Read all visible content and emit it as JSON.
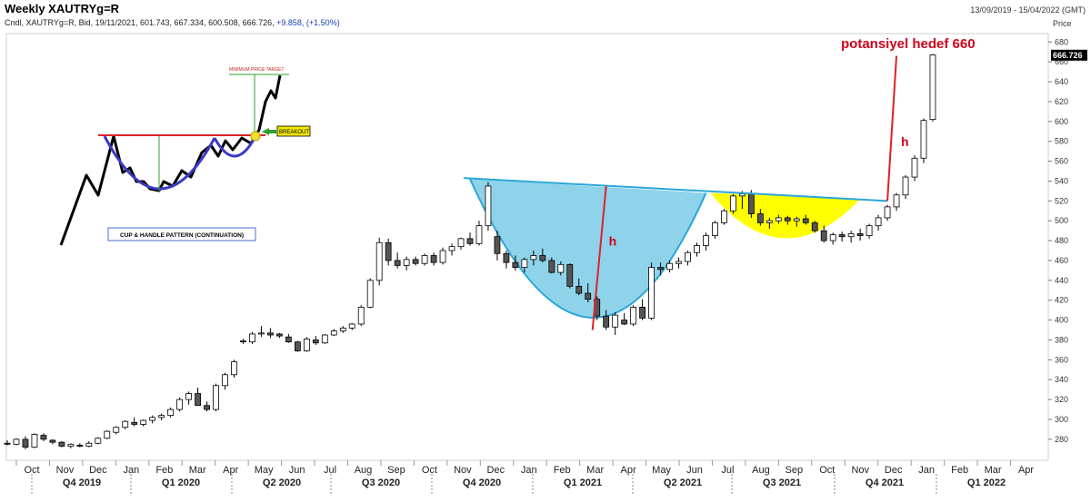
{
  "header": {
    "title": "Weekly XAUTRYg=R",
    "date_range": "13/09/2019 - 15/04/2022 (GMT)",
    "info_prefix": "Cndl, XAUTRYg=R, Bid, 19/11/2021, 601.743, 667.334, 600.508, 666.726, ",
    "info_change": "+9.858, (+1.50%)"
  },
  "axis": {
    "price_label": "Price",
    "y_ticks": [
      "280",
      "300",
      "320",
      "340",
      "360",
      "380",
      "400",
      "420",
      "440",
      "460",
      "480",
      "500",
      "520",
      "540",
      "560",
      "580",
      "600",
      "620",
      "640",
      "660",
      "680"
    ],
    "last_price": "666.726",
    "months": [
      "Oct",
      "Nov",
      "Dec",
      "Jan",
      "Feb",
      "Mar",
      "Apr",
      "May",
      "Jun",
      "Jul",
      "Aug",
      "Sep",
      "Oct",
      "Nov",
      "Dec",
      "Jan",
      "Feb",
      "Mar",
      "Apr",
      "May",
      "Jun",
      "Jul",
      "Aug",
      "Sep",
      "Oct",
      "Nov",
      "Dec",
      "Jan",
      "Feb",
      "Mar",
      "Apr"
    ],
    "quarters": [
      "Q4 2019",
      "Q1 2020",
      "Q2 2020",
      "Q3 2020",
      "Q4 2020",
      "Q1 2021",
      "Q2 2021",
      "Q3 2021",
      "Q4 2021",
      "Q1 2022"
    ]
  },
  "annotations": {
    "target_text": "potansiyel hedef 660",
    "h_label_1": "h",
    "h_label_2": "h",
    "inset_min_target": "MINIMUM PRICE TARGET",
    "inset_breakout": "BREAKOUT",
    "inset_caption": "CUP & HANDLE PATTERN (CONTINUATION)"
  },
  "colors": {
    "up_body": "#ffffff",
    "down_body": "#555555",
    "cup_fill": "#8fd3ea",
    "handle_fill": "#ffff00",
    "neckline": "#2aa7d8",
    "target_line": "#e0202a",
    "inset_cup": "#3b3bc4",
    "inset_level": "#e0202a",
    "inset_green": "#2ca02c"
  },
  "chart_data": {
    "type": "candlestick",
    "title": "Weekly XAUTRYg=R",
    "ylabel": "Price",
    "ylim": [
      270,
      690
    ],
    "candles": [
      [
        276,
        279,
        274,
        275
      ],
      [
        275,
        281,
        274,
        280
      ],
      [
        280,
        283,
        270,
        272
      ],
      [
        272,
        286,
        271,
        285
      ],
      [
        284,
        286,
        278,
        280
      ],
      [
        279,
        280,
        275,
        277
      ],
      [
        277,
        278,
        272,
        273
      ],
      [
        273,
        276,
        271,
        275
      ],
      [
        274,
        276,
        272,
        273
      ],
      [
        273,
        278,
        272,
        276
      ],
      [
        276,
        282,
        275,
        281
      ],
      [
        281,
        289,
        280,
        288
      ],
      [
        287,
        293,
        285,
        292
      ],
      [
        292,
        299,
        290,
        298
      ],
      [
        297,
        302,
        293,
        295
      ],
      [
        295,
        300,
        293,
        299
      ],
      [
        299,
        304,
        296,
        302
      ],
      [
        302,
        306,
        299,
        304
      ],
      [
        304,
        312,
        302,
        310
      ],
      [
        310,
        322,
        308,
        320
      ],
      [
        320,
        328,
        315,
        326
      ],
      [
        326,
        332,
        318,
        314
      ],
      [
        314,
        318,
        308,
        310
      ],
      [
        310,
        336,
        308,
        334
      ],
      [
        334,
        347,
        330,
        345
      ],
      [
        345,
        360,
        342,
        358
      ],
      [
        379,
        381,
        376,
        378
      ],
      [
        378,
        388,
        376,
        386
      ],
      [
        386,
        394,
        383,
        387
      ],
      [
        387,
        392,
        382,
        385
      ],
      [
        386,
        387,
        382,
        384
      ],
      [
        383,
        386,
        377,
        378
      ],
      [
        378,
        379,
        368,
        369
      ],
      [
        369,
        383,
        368,
        381
      ],
      [
        380,
        384,
        375,
        377
      ],
      [
        377,
        386,
        376,
        385
      ],
      [
        385,
        391,
        384,
        389
      ],
      [
        389,
        394,
        387,
        392
      ],
      [
        392,
        397,
        390,
        396
      ],
      [
        396,
        415,
        394,
        413
      ],
      [
        413,
        442,
        412,
        440
      ],
      [
        440,
        483,
        435,
        478
      ],
      [
        478,
        482,
        455,
        460
      ],
      [
        460,
        468,
        452,
        455
      ],
      [
        455,
        464,
        450,
        461
      ],
      [
        461,
        464,
        455,
        457
      ],
      [
        457,
        467,
        455,
        465
      ],
      [
        465,
        468,
        455,
        458
      ],
      [
        458,
        473,
        456,
        470
      ],
      [
        470,
        477,
        465,
        474
      ],
      [
        474,
        483,
        471,
        482
      ],
      [
        482,
        488,
        475,
        477
      ],
      [
        477,
        500,
        475,
        495
      ],
      [
        495,
        539,
        490,
        535
      ],
      [
        484,
        490,
        460,
        467
      ],
      [
        467,
        470,
        452,
        458
      ],
      [
        458,
        465,
        450,
        453
      ],
      [
        453,
        463,
        448,
        461
      ],
      [
        461,
        470,
        455,
        465
      ],
      [
        465,
        472,
        458,
        460
      ],
      [
        460,
        463,
        447,
        448
      ],
      [
        448,
        459,
        445,
        456
      ],
      [
        456,
        457,
        432,
        434
      ],
      [
        434,
        442,
        425,
        427
      ],
      [
        427,
        437,
        418,
        421
      ],
      [
        421,
        424,
        400,
        404
      ],
      [
        404,
        410,
        390,
        393
      ],
      [
        393,
        408,
        385,
        405
      ],
      [
        400,
        407,
        395,
        396
      ],
      [
        396,
        415,
        394,
        413
      ],
      [
        413,
        421,
        400,
        402
      ],
      [
        402,
        458,
        400,
        453
      ],
      [
        453,
        458,
        445,
        451
      ],
      [
        451,
        460,
        448,
        457
      ],
      [
        457,
        463,
        452,
        459
      ],
      [
        459,
        470,
        455,
        468
      ],
      [
        468,
        478,
        464,
        475
      ],
      [
        475,
        488,
        470,
        485
      ],
      [
        485,
        500,
        482,
        498
      ],
      [
        498,
        512,
        496,
        510
      ],
      [
        510,
        527,
        507,
        525
      ],
      [
        525,
        530,
        512,
        527
      ],
      [
        527,
        531,
        503,
        507
      ],
      [
        507,
        512,
        495,
        498
      ],
      [
        498,
        503,
        492,
        500
      ],
      [
        500,
        506,
        497,
        503
      ],
      [
        503,
        505,
        496,
        500
      ],
      [
        500,
        504,
        494,
        502
      ],
      [
        502,
        506,
        496,
        498
      ],
      [
        498,
        500,
        488,
        490
      ],
      [
        490,
        495,
        478,
        480
      ],
      [
        480,
        488,
        476,
        486
      ],
      [
        486,
        489,
        479,
        484
      ],
      [
        484,
        490,
        478,
        487
      ],
      [
        487,
        492,
        480,
        485
      ],
      [
        485,
        497,
        482,
        495
      ],
      [
        495,
        506,
        490,
        503
      ],
      [
        503,
        516,
        500,
        514
      ],
      [
        514,
        528,
        510,
        526
      ],
      [
        526,
        546,
        522,
        544
      ],
      [
        544,
        566,
        540,
        563
      ],
      [
        563,
        603,
        558,
        601
      ],
      [
        602,
        668,
        600,
        667
      ]
    ],
    "neckline": [
      [
        53,
        543
      ],
      [
        97,
        520
      ]
    ],
    "target_projection": [
      [
        97,
        520
      ],
      [
        98,
        666
      ]
    ],
    "h_measure": [
      [
        68,
        390
      ],
      [
        68,
        535
      ]
    ],
    "target": 660,
    "last_price": 666.726
  }
}
